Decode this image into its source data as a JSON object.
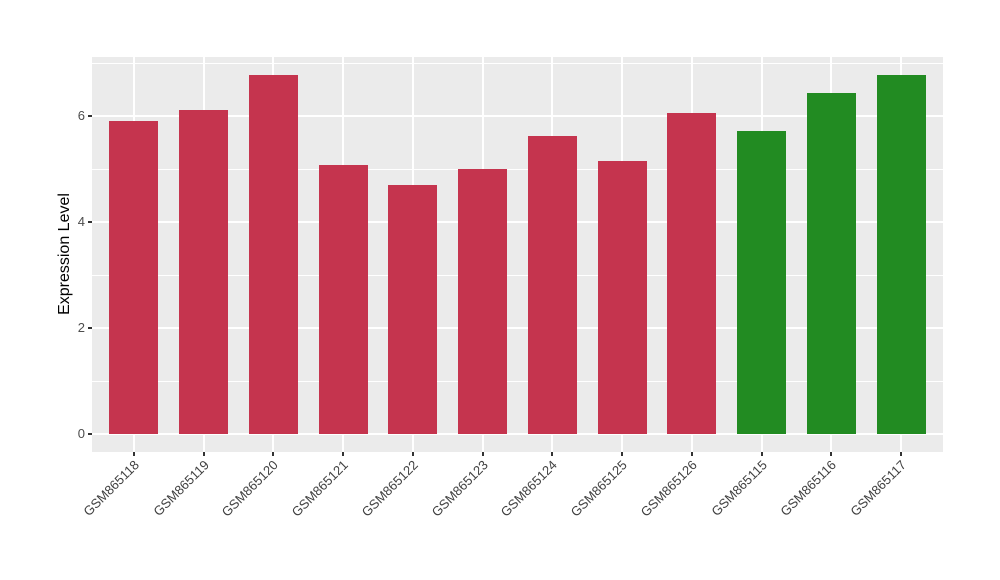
{
  "chart_data": {
    "type": "bar",
    "title": "",
    "xlabel": "",
    "ylabel": "Expression Level",
    "categories": [
      "GSM865118",
      "GSM865119",
      "GSM865120",
      "GSM865121",
      "GSM865122",
      "GSM865123",
      "GSM865124",
      "GSM865125",
      "GSM865126",
      "GSM865115",
      "GSM865116",
      "GSM865117"
    ],
    "values": [
      5.9,
      6.12,
      6.78,
      5.08,
      4.7,
      5.0,
      5.62,
      5.16,
      6.06,
      5.71,
      6.43,
      6.78
    ],
    "bar_colors": [
      "#C5344E",
      "#C5344E",
      "#C5344E",
      "#C5344E",
      "#C5344E",
      "#C5344E",
      "#C5344E",
      "#C5344E",
      "#C5344E",
      "#228B22",
      "#228B22",
      "#228B22"
    ],
    "group_colors": {
      "red": "#C5344E",
      "green": "#228B22"
    },
    "yticks": [
      0,
      2,
      4,
      6
    ],
    "yticks_minor": [
      1,
      3,
      5,
      7
    ],
    "ylim": [
      0,
      7.1
    ],
    "grid": "on",
    "legend": "none",
    "panel_bg": "#EBEBEB",
    "grid_color": "#FFFFFF",
    "x_label_angle_deg": 45
  }
}
